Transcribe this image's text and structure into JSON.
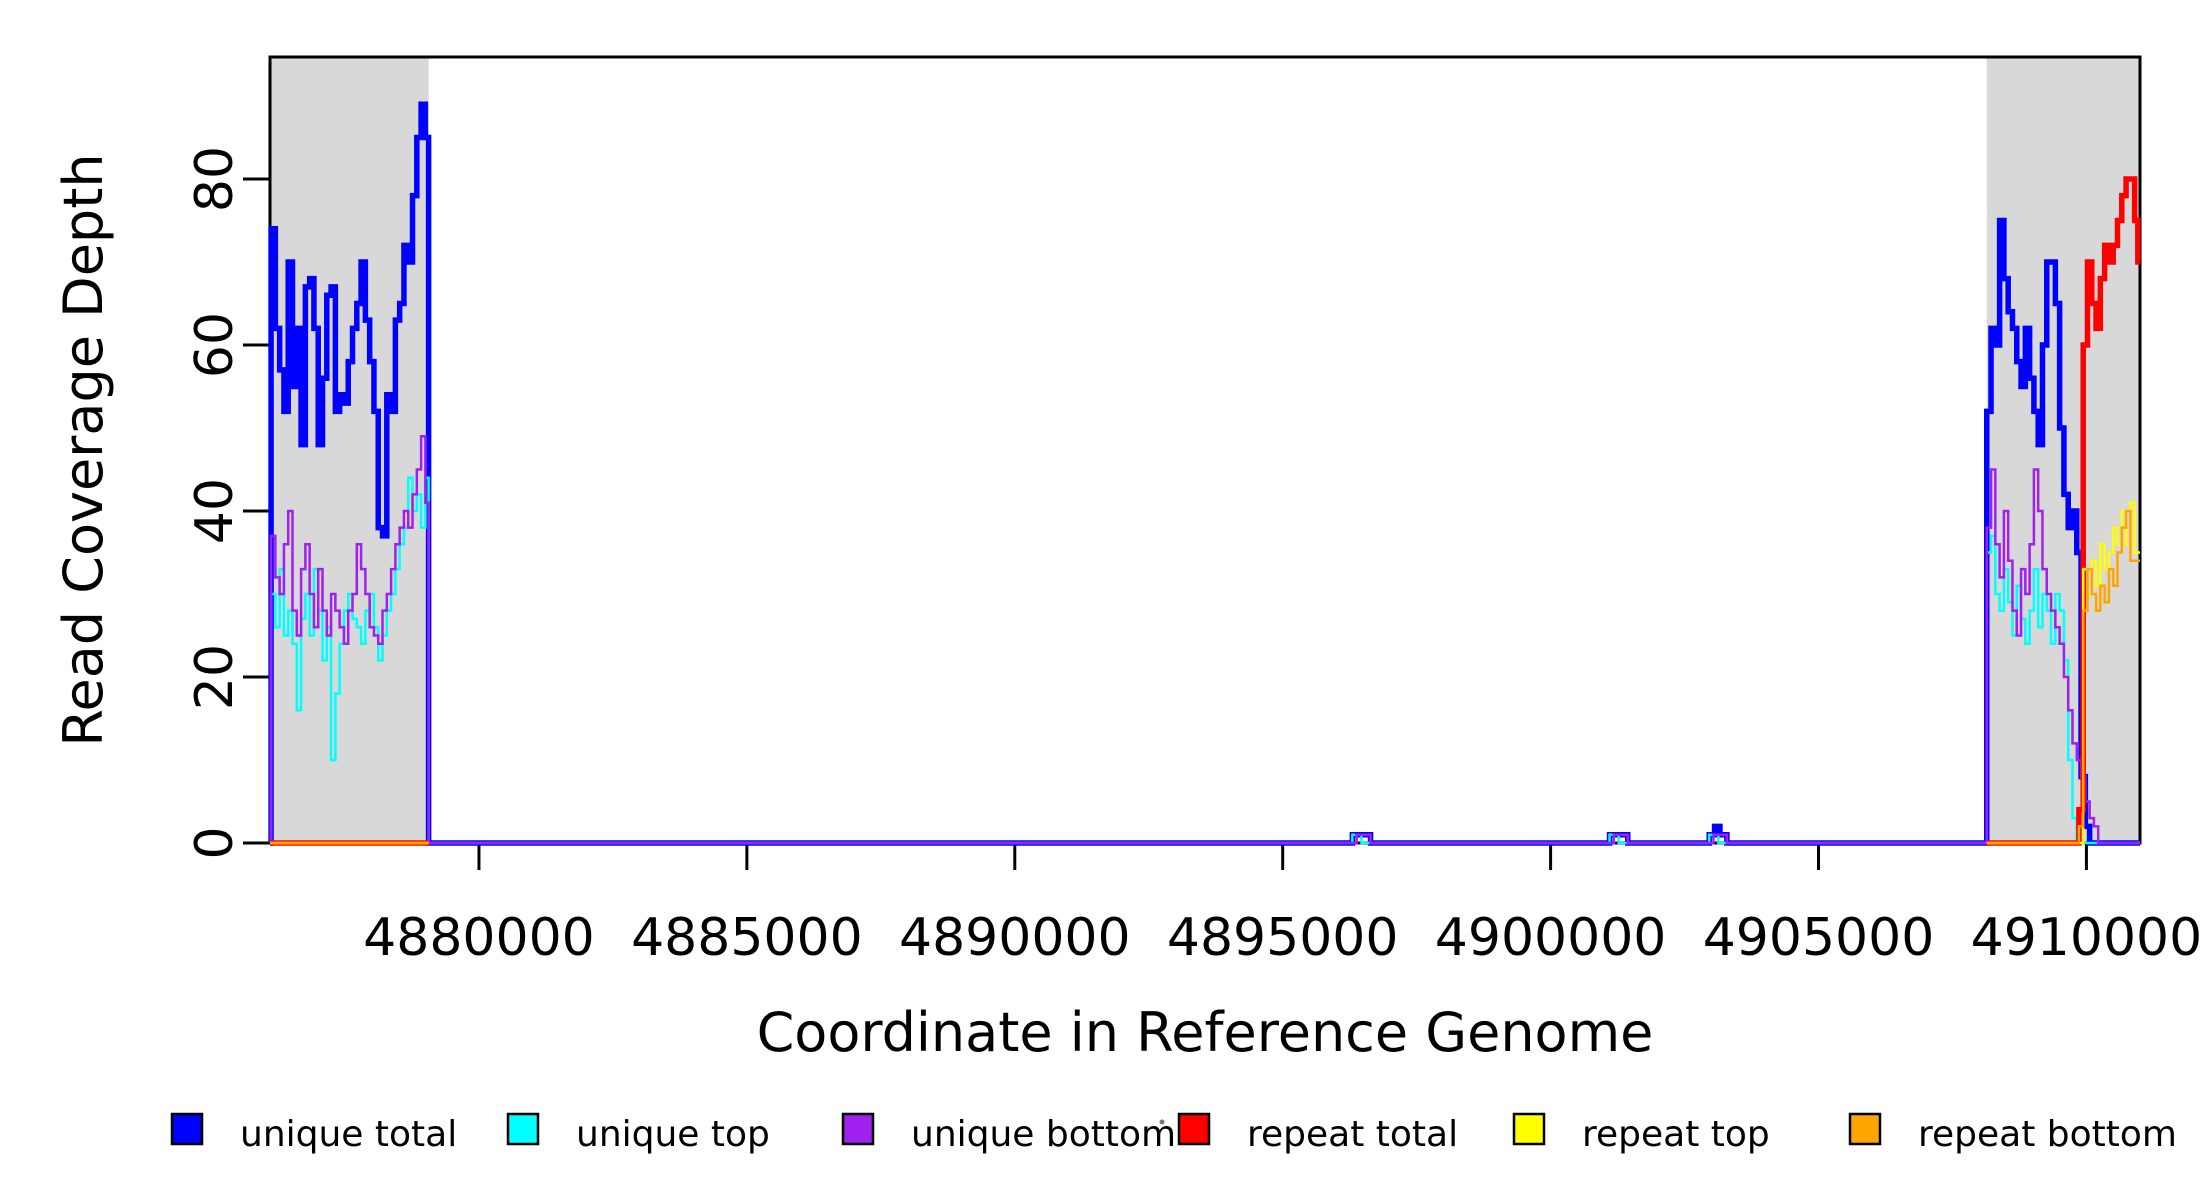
{
  "figure": {
    "background": "#ffffff",
    "shade_color": "#d8d8d8",
    "frame_color": "#000000"
  },
  "chart_data": {
    "type": "line",
    "title": "",
    "xlabel": "Coordinate in Reference Genome",
    "ylabel": "Read Coverage Depth",
    "xlim": [
      4876100,
      4911000
    ],
    "ylim": [
      0,
      94.7
    ],
    "grid": false,
    "legend_position": "bottom",
    "x_ticks": [
      4880000,
      4885000,
      4890000,
      4895000,
      4900000,
      4905000,
      4910000
    ],
    "x_tick_labels": [
      "4880000",
      "4885000",
      "4890000",
      "4895000",
      "4900000",
      "4905000",
      "4910000"
    ],
    "y_ticks": [
      0,
      20,
      40,
      60,
      80
    ],
    "y_tick_labels": [
      "0",
      "20",
      "40",
      "60",
      "80"
    ],
    "shaded_regions": [
      {
        "x0": 4876100,
        "x1": 4879060
      },
      {
        "x0": 4908140,
        "x1": 4911000
      }
    ],
    "series": [
      {
        "name": "unique total",
        "color": "#0000FF",
        "line_width": 5.5,
        "segments": [
          {
            "x": [
              4876100,
              4876120,
              4876200,
              4876280,
              4876360,
              4876440,
              4876520,
              4876600,
              4876680,
              4876760,
              4876840,
              4876920,
              4877000,
              4877080,
              4877160,
              4877240,
              4877320,
              4877400,
              4877480,
              4877560,
              4877640,
              4877720,
              4877800,
              4877880,
              4877960,
              4878040,
              4878120,
              4878200,
              4878280,
              4878360,
              4878440,
              4878520,
              4878600,
              4878680,
              4878760,
              4878840,
              4878920,
              4879000,
              4879060,
              4896300,
              4896640,
              4901100,
              4901440,
              4902960,
              4903060,
              4903160,
              4903290,
              4908140,
              4908220,
              4908300,
              4908380,
              4908460,
              4908540,
              4908620,
              4908700,
              4908780,
              4908860,
              4908940,
              4909020,
              4909100,
              4909180,
              4909260,
              4909340,
              4909420,
              4909500,
              4909580,
              4909660,
              4909740,
              4909820,
              4909900,
              4909980,
              4910060,
              4911000
            ],
            "y": [
              0,
              74,
              62,
              57,
              52,
              70,
              55,
              62,
              48,
              67,
              68,
              62,
              48,
              56,
              66,
              67,
              52,
              54,
              53,
              58,
              62,
              65,
              70,
              63,
              58,
              52,
              38,
              37,
              54,
              52,
              63,
              65,
              72,
              70,
              78,
              85,
              89,
              85,
              0,
              1,
              0,
              1,
              0,
              1,
              2,
              1,
              0,
              52,
              62,
              60,
              75,
              68,
              64,
              62,
              58,
              55,
              62,
              56,
              52,
              48,
              60,
              70,
              70,
              65,
              50,
              42,
              38,
              40,
              35,
              8,
              2,
              0,
              0
            ]
          }
        ]
      },
      {
        "name": "unique top",
        "color": "#00FFFF",
        "line_width": 2.5,
        "segments": [
          {
            "x": [
              4876100,
              4876120,
              4876200,
              4876280,
              4876360,
              4876440,
              4876520,
              4876600,
              4876680,
              4876760,
              4876840,
              4876920,
              4877000,
              4877080,
              4877160,
              4877240,
              4877320,
              4877400,
              4877480,
              4877560,
              4877640,
              4877720,
              4877800,
              4877880,
              4877960,
              4878040,
              4878120,
              4878200,
              4878280,
              4878360,
              4878440,
              4878520,
              4878600,
              4878680,
              4878760,
              4878840,
              4878920,
              4879000,
              4879060,
              4896300,
              4896470,
              4901100,
              4901270,
              4902960,
              4903130,
              4908140,
              4908220,
              4908300,
              4908380,
              4908460,
              4908540,
              4908620,
              4908700,
              4908780,
              4908860,
              4908940,
              4909020,
              4909100,
              4909180,
              4909260,
              4909340,
              4909420,
              4909500,
              4909580,
              4909660,
              4909740,
              4909820,
              4911000
            ],
            "y": [
              0,
              30,
              26,
              33,
              25,
              28,
              24,
              16,
              27,
              30,
              25,
              33,
              28,
              22,
              26,
              10,
              18,
              24,
              28,
              30,
              27,
              26,
              24,
              28,
              30,
              26,
              22,
              25,
              28,
              30,
              33,
              36,
              38,
              44,
              40,
              42,
              38,
              44,
              0,
              1,
              0,
              1,
              0,
              1,
              0,
              35,
              37,
              30,
              28,
              33,
              29,
              25,
              31,
              27,
              24,
              28,
              33,
              26,
              30,
              28,
              24,
              30,
              28,
              22,
              10,
              3,
              0,
              0
            ]
          }
        ]
      },
      {
        "name": "unique bottom",
        "color": "#A020F0",
        "line_width": 2.5,
        "segments": [
          {
            "x": [
              4876100,
              4876120,
              4876200,
              4876280,
              4876360,
              4876440,
              4876520,
              4876600,
              4876680,
              4876760,
              4876840,
              4876920,
              4877000,
              4877080,
              4877160,
              4877240,
              4877320,
              4877400,
              4877480,
              4877560,
              4877640,
              4877720,
              4877800,
              4877880,
              4877960,
              4878040,
              4878120,
              4878200,
              4878280,
              4878360,
              4878440,
              4878520,
              4878600,
              4878680,
              4878760,
              4878840,
              4878920,
              4879000,
              4879060,
              4896380,
              4896640,
              4901180,
              4901440,
              4903040,
              4903290,
              4908140,
              4908220,
              4908300,
              4908380,
              4908460,
              4908540,
              4908620,
              4908700,
              4908780,
              4908860,
              4908940,
              4909020,
              4909100,
              4909180,
              4909260,
              4909340,
              4909420,
              4909500,
              4909580,
              4909660,
              4909740,
              4909820,
              4909900,
              4909980,
              4910060,
              4910140,
              4910220,
              4911000
            ],
            "y": [
              0,
              37,
              32,
              30,
              36,
              40,
              28,
              25,
              33,
              36,
              30,
              26,
              33,
              28,
              25,
              30,
              28,
              26,
              24,
              28,
              30,
              36,
              33,
              30,
              26,
              25,
              24,
              28,
              30,
              33,
              36,
              38,
              40,
              38,
              42,
              45,
              49,
              41,
              0,
              1,
              0,
              1,
              0,
              1,
              0,
              38,
              45,
              36,
              32,
              40,
              34,
              28,
              25,
              33,
              30,
              36,
              45,
              40,
              33,
              30,
              28,
              26,
              24,
              20,
              16,
              12,
              10,
              8,
              5,
              3,
              2,
              0,
              0
            ]
          }
        ]
      },
      {
        "name": "repeat total",
        "color": "#FF0000",
        "line_width": 5.5,
        "segments": [
          {
            "x": [
              4876100,
              4879060
            ],
            "y": [
              0,
              0
            ]
          },
          {
            "x": [
              4908140,
              4909860,
              4909940,
              4910020,
              4910100,
              4910180,
              4910260,
              4910340,
              4910420,
              4910500,
              4910580,
              4910660,
              4910740,
              4910820,
              4910900,
              4910960,
              4911000
            ],
            "y": [
              0,
              4,
              60,
              70,
              65,
              62,
              68,
              72,
              70,
              72,
              75,
              78,
              80,
              80,
              75,
              70,
              70
            ]
          }
        ]
      },
      {
        "name": "repeat top",
        "color": "#FFFF00",
        "line_width": 2.5,
        "segments": [
          {
            "x": [
              4876100,
              4879060
            ],
            "y": [
              0,
              0
            ]
          },
          {
            "x": [
              4908140,
              4909940,
              4910020,
              4910100,
              4910180,
              4910260,
              4910340,
              4910420,
              4910500,
              4910580,
              4910660,
              4910740,
              4910820,
              4910900,
              4911000
            ],
            "y": [
              0,
              33,
              30,
              34,
              31,
              36,
              33,
              35,
              38,
              36,
              40,
              36,
              41,
              35,
              35
            ]
          }
        ]
      },
      {
        "name": "repeat bottom",
        "color": "#FFA500",
        "line_width": 2.5,
        "segments": [
          {
            "x": [
              4876100,
              4879060
            ],
            "y": [
              0,
              0
            ]
          },
          {
            "x": [
              4908140,
              4909860,
              4909940,
              4910020,
              4910100,
              4910180,
              4910260,
              4910340,
              4910420,
              4910500,
              4910580,
              4910660,
              4910740,
              4910820,
              4911000
            ],
            "y": [
              0,
              2,
              28,
              33,
              30,
              28,
              31,
              29,
              33,
              31,
              35,
              38,
              40,
              34,
              34
            ]
          }
        ]
      }
    ],
    "legend": {
      "items": [
        {
          "label": "unique total",
          "color": "#0000FF"
        },
        {
          "label": "unique top",
          "color": "#00FFFF"
        },
        {
          "label": "unique bottom",
          "color": "#A020F0"
        },
        {
          "label": "repeat total",
          "color": "#FF0000"
        },
        {
          "label": "repeat top",
          "color": "#FFFF00"
        },
        {
          "label": "repeat bottom",
          "color": "#FFA500"
        }
      ]
    }
  }
}
